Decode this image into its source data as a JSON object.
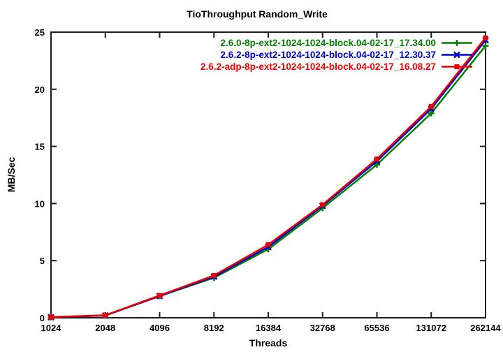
{
  "chart_data": {
    "type": "line",
    "title": "TioThroughput Random_Write",
    "xlabel": "Threads",
    "ylabel": "MB/Sec",
    "x_scale": "log2-categorical",
    "categories": [
      "1024",
      "2048",
      "4096",
      "8192",
      "16384",
      "32768",
      "65536",
      "131072",
      "262144"
    ],
    "y_ticks": [
      "0",
      "5",
      "10",
      "15",
      "20",
      "25"
    ],
    "ylim": [
      0,
      25
    ],
    "grid": false,
    "legend_position": "top-right-inside",
    "axis_color": "#1a1a1a",
    "series": [
      {
        "name": "2.6.0-8p-ext2-1024-1024-block.04-02-17_17.34.00",
        "color": "#008000",
        "marker": "plus",
        "values": [
          0.05,
          0.2,
          1.9,
          3.5,
          6.0,
          9.6,
          13.4,
          17.9,
          23.8
        ]
      },
      {
        "name": "2.6.2-8p-ext2-1024-1024-block.04-02-17_12.30.37",
        "color": "#0000cc",
        "marker": "cross",
        "values": [
          0.05,
          0.2,
          1.9,
          3.6,
          6.2,
          9.8,
          13.7,
          18.3,
          24.3
        ]
      },
      {
        "name": "2.6.2-adp-8p-ext2-1024-1024-block.04-02-17_16.08.27",
        "color": "#ee0000",
        "marker": "square",
        "values": [
          0.06,
          0.22,
          1.95,
          3.7,
          6.4,
          9.9,
          13.9,
          18.5,
          24.5
        ]
      }
    ]
  }
}
